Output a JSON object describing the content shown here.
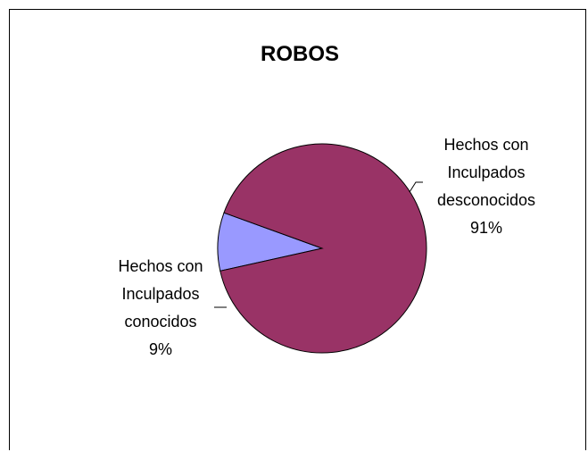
{
  "chart_data": {
    "type": "pie",
    "title": "ROBOS",
    "slices": [
      {
        "name_lines": [
          "Hechos con",
          "Inculpados",
          "conocidos"
        ],
        "percent_label": "9%",
        "value": 9,
        "color": "#9999ff"
      },
      {
        "name_lines": [
          "Hechos con",
          "Inculpados",
          "desconocidos"
        ],
        "percent_label": "91%",
        "value": 91,
        "color": "#993366"
      }
    ],
    "legend": "none",
    "data_labels": "category and percentage"
  }
}
